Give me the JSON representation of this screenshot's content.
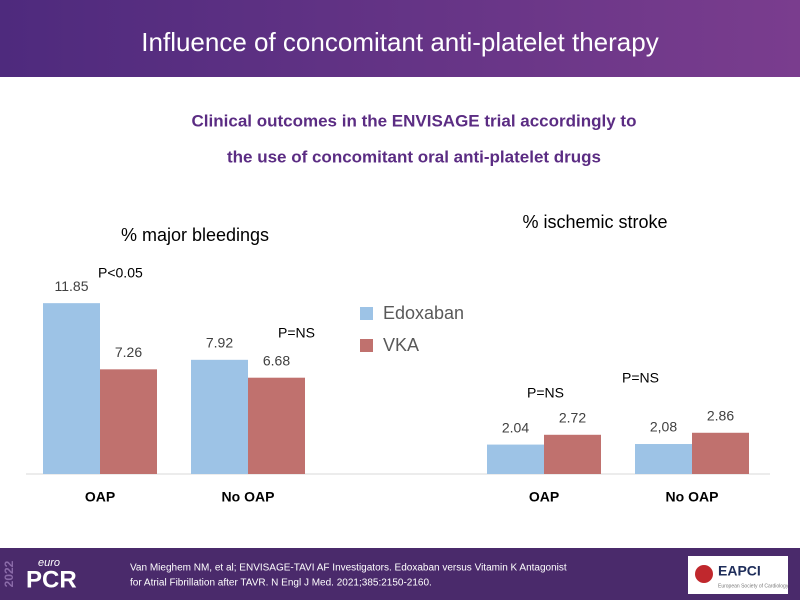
{
  "header": {
    "title": "Influence of concomitant anti-platelet therapy"
  },
  "subtitle": [
    "Clinical outcomes in the ENVISAGE trial accordingly to",
    "the use of concomitant oral anti-platelet drugs"
  ],
  "chart_data": {
    "type": "bar",
    "categories": [
      "OAP",
      "No OAP",
      null,
      "OAP",
      "No OAP"
    ],
    "series": [
      {
        "name": "Edoxaban",
        "color": "#9dc3e6",
        "values": [
          11.85,
          7.92,
          null,
          2.04,
          2.08
        ],
        "value_labels": [
          "11.85",
          "7.92",
          null,
          "2.04",
          "2,08"
        ]
      },
      {
        "name": "VKA",
        "color": "#c0716e",
        "values": [
          7.26,
          6.68,
          null,
          2.72,
          2.86
        ]
      }
    ],
    "ylim": [
      0,
      12
    ],
    "annotations": [
      "% major bleedings",
      "% ischemic  stroke",
      "P<0.05",
      "P=NS",
      "P=NS",
      "P=NS"
    ]
  },
  "footer": {
    "logo_small": "euro",
    "logo": "PCR",
    "year": "2022",
    "citation": [
      "Van Mieghem NM, et al; ENVISAGE-TAVI AF Investigators. Edoxaban versus Vitamin K Antagonist",
      "for Atrial Fibrillation after TAVR. N Engl J Med. 2021;385:2150-2160."
    ],
    "badge": "EAPCI",
    "badge_sub": "European Society of Cardiology"
  }
}
